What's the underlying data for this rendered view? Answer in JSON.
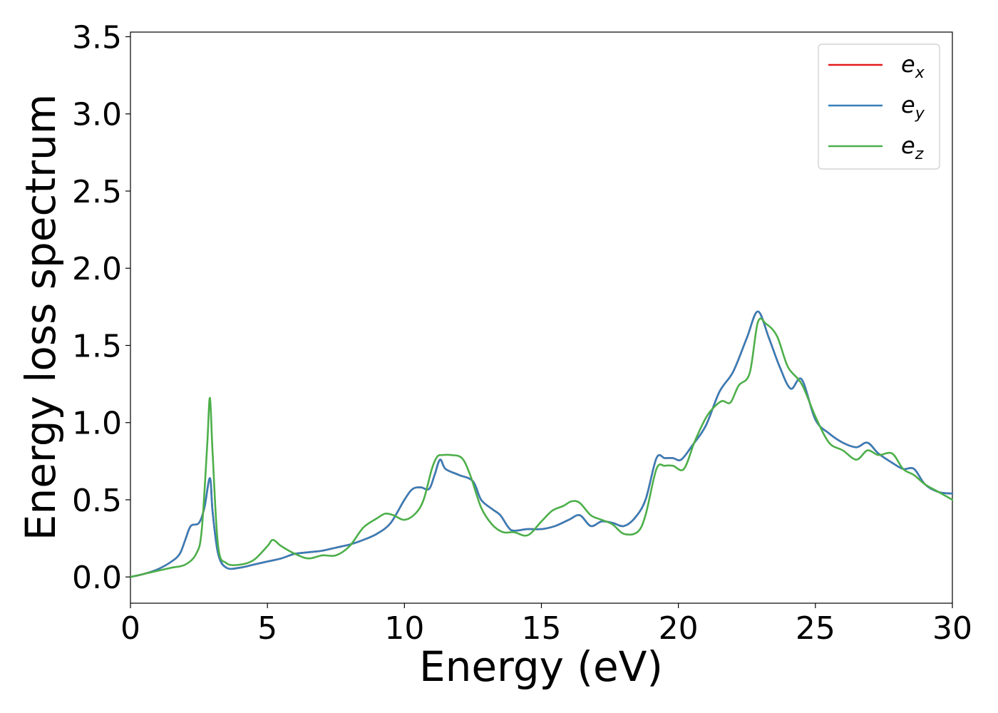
{
  "chart_data": {
    "type": "line",
    "xlabel": "Energy (eV)",
    "ylabel": "Energy loss spectrum",
    "xlim": [
      0,
      30
    ],
    "ylim": [
      -0.17,
      3.53
    ],
    "xticks": [
      "0",
      "5",
      "10",
      "15",
      "20",
      "25",
      "30"
    ],
    "yticks": [
      "0.0",
      "0.5",
      "1.0",
      "1.5",
      "2.0",
      "2.5",
      "3.0",
      "3.5"
    ],
    "grid": false,
    "legend_position": "top-right",
    "series": [
      {
        "name": "e_x",
        "base": "e",
        "sub": "x",
        "color": "#e41a1c",
        "x": [
          0,
          0.5,
          1,
          1.5,
          1.8,
          2,
          2.2,
          2.5,
          2.7,
          2.9,
          3.0,
          3.2,
          3.5,
          4,
          4.5,
          5,
          5.5,
          6,
          6.5,
          7,
          7.5,
          8,
          8.5,
          9,
          9.5,
          10,
          10.3,
          10.6,
          10.9,
          11.1,
          11.3,
          11.5,
          12,
          12.5,
          12.8,
          13.2,
          13.5,
          13.8,
          14,
          14.5,
          15,
          15.5,
          16,
          16.4,
          16.8,
          17.2,
          17.6,
          18,
          18.4,
          18.8,
          19.2,
          19.5,
          19.8,
          20.1,
          20.5,
          21,
          21.5,
          22,
          22.5,
          22.9,
          23.3,
          23.7,
          24.1,
          24.5,
          25,
          25.5,
          26,
          26.5,
          26.9,
          27.3,
          27.8,
          28.2,
          28.6,
          29,
          29.5,
          30
        ],
        "y": [
          0.0,
          0.02,
          0.05,
          0.1,
          0.15,
          0.24,
          0.33,
          0.35,
          0.45,
          0.64,
          0.42,
          0.15,
          0.06,
          0.06,
          0.08,
          0.1,
          0.12,
          0.15,
          0.16,
          0.17,
          0.19,
          0.21,
          0.24,
          0.28,
          0.35,
          0.5,
          0.57,
          0.58,
          0.57,
          0.66,
          0.76,
          0.7,
          0.66,
          0.62,
          0.5,
          0.44,
          0.4,
          0.32,
          0.3,
          0.31,
          0.31,
          0.33,
          0.37,
          0.4,
          0.33,
          0.36,
          0.35,
          0.33,
          0.38,
          0.5,
          0.77,
          0.77,
          0.77,
          0.76,
          0.85,
          0.98,
          1.2,
          1.33,
          1.55,
          1.72,
          1.55,
          1.36,
          1.22,
          1.28,
          1.02,
          0.93,
          0.87,
          0.84,
          0.87,
          0.8,
          0.74,
          0.7,
          0.7,
          0.6,
          0.55,
          0.54
        ]
      },
      {
        "name": "e_y",
        "base": "e",
        "sub": "y",
        "color": "#377eb8",
        "x": [
          0,
          0.5,
          1,
          1.5,
          1.8,
          2,
          2.2,
          2.5,
          2.7,
          2.9,
          3.0,
          3.2,
          3.5,
          4,
          4.5,
          5,
          5.5,
          6,
          6.5,
          7,
          7.5,
          8,
          8.5,
          9,
          9.5,
          10,
          10.3,
          10.6,
          10.9,
          11.1,
          11.3,
          11.5,
          12,
          12.5,
          12.8,
          13.2,
          13.5,
          13.8,
          14,
          14.5,
          15,
          15.5,
          16,
          16.4,
          16.8,
          17.2,
          17.6,
          18,
          18.4,
          18.8,
          19.2,
          19.5,
          19.8,
          20.1,
          20.5,
          21,
          21.5,
          22,
          22.5,
          22.9,
          23.3,
          23.7,
          24.1,
          24.5,
          25,
          25.5,
          26,
          26.5,
          26.9,
          27.3,
          27.8,
          28.2,
          28.6,
          29,
          29.5,
          30
        ],
        "y": [
          0.0,
          0.02,
          0.05,
          0.1,
          0.15,
          0.24,
          0.33,
          0.35,
          0.45,
          0.64,
          0.42,
          0.15,
          0.06,
          0.06,
          0.08,
          0.1,
          0.12,
          0.15,
          0.16,
          0.17,
          0.19,
          0.21,
          0.24,
          0.28,
          0.35,
          0.5,
          0.57,
          0.58,
          0.57,
          0.66,
          0.76,
          0.7,
          0.66,
          0.62,
          0.5,
          0.44,
          0.4,
          0.32,
          0.3,
          0.31,
          0.31,
          0.33,
          0.37,
          0.4,
          0.33,
          0.36,
          0.35,
          0.33,
          0.38,
          0.5,
          0.77,
          0.77,
          0.77,
          0.76,
          0.85,
          0.98,
          1.2,
          1.33,
          1.55,
          1.72,
          1.55,
          1.36,
          1.22,
          1.28,
          1.02,
          0.93,
          0.87,
          0.84,
          0.87,
          0.8,
          0.74,
          0.7,
          0.7,
          0.6,
          0.55,
          0.54
        ]
      },
      {
        "name": "e_z",
        "base": "e",
        "sub": "z",
        "color": "#4daf4a",
        "x": [
          0,
          0.5,
          1,
          1.5,
          2,
          2.4,
          2.6,
          2.8,
          2.9,
          3.0,
          3.2,
          3.5,
          4,
          4.5,
          5,
          5.2,
          5.5,
          6,
          6.5,
          7,
          7.5,
          8,
          8.5,
          9,
          9.3,
          9.6,
          10,
          10.4,
          10.7,
          11,
          11.2,
          11.4,
          11.7,
          12.1,
          12.4,
          12.8,
          13.2,
          13.6,
          14,
          14.5,
          15,
          15.4,
          15.8,
          16.1,
          16.4,
          16.8,
          17.2,
          17.6,
          18,
          18.5,
          18.8,
          19.2,
          19.5,
          19.8,
          20.2,
          20.6,
          21,
          21.3,
          21.6,
          21.9,
          22.2,
          22.6,
          22.9,
          23.2,
          23.6,
          24,
          24.5,
          25,
          25.5,
          26,
          26.5,
          26.9,
          27.3,
          27.8,
          28.2,
          28.6,
          29,
          29.5,
          30
        ],
        "y": [
          0.0,
          0.02,
          0.04,
          0.06,
          0.08,
          0.15,
          0.3,
          0.85,
          1.16,
          0.8,
          0.2,
          0.09,
          0.08,
          0.11,
          0.2,
          0.24,
          0.2,
          0.15,
          0.12,
          0.14,
          0.14,
          0.2,
          0.32,
          0.38,
          0.41,
          0.4,
          0.37,
          0.41,
          0.5,
          0.7,
          0.78,
          0.79,
          0.79,
          0.77,
          0.66,
          0.45,
          0.34,
          0.29,
          0.29,
          0.27,
          0.36,
          0.43,
          0.46,
          0.49,
          0.48,
          0.4,
          0.37,
          0.34,
          0.28,
          0.29,
          0.4,
          0.7,
          0.72,
          0.72,
          0.7,
          0.88,
          1.03,
          1.1,
          1.14,
          1.13,
          1.24,
          1.32,
          1.65,
          1.64,
          1.56,
          1.36,
          1.25,
          1.04,
          0.87,
          0.82,
          0.76,
          0.82,
          0.79,
          0.8,
          0.7,
          0.66,
          0.6,
          0.55,
          0.5
        ]
      }
    ]
  }
}
